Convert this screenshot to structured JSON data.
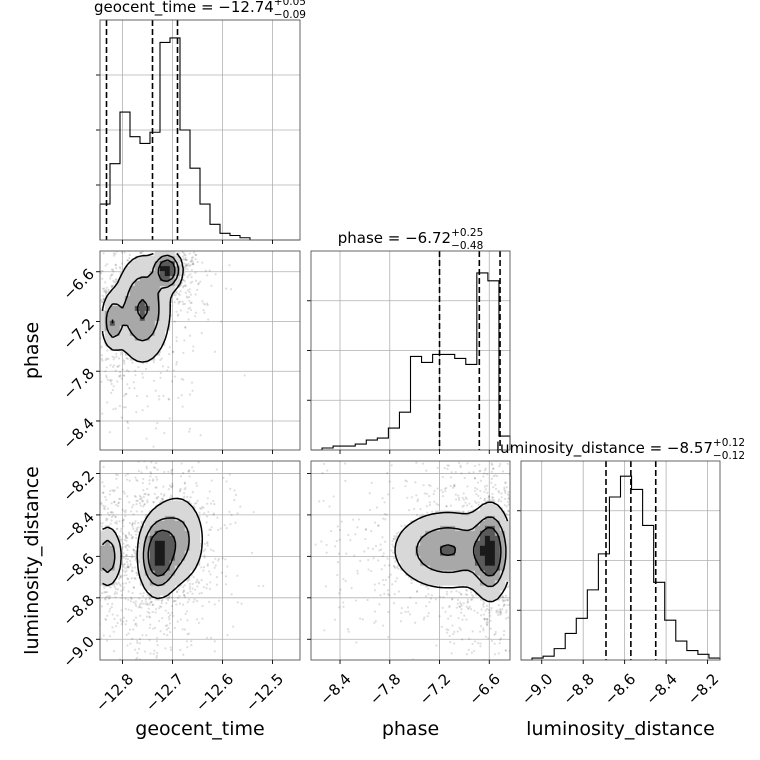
{
  "chart_data": {
    "type": "corner",
    "parameters": [
      "geocent_time",
      "phase",
      "luminosity_distance"
    ],
    "panels": [
      {
        "id": "geocent_time-hist",
        "title": {
          "name": "geocent_time",
          "eq": " = ",
          "median": "−12.74",
          "plus": "+0.05",
          "minus": "−0.09"
        },
        "xlim": [
          -12.845,
          -12.445
        ],
        "hist": [
          0.16,
          0.34,
          0.57,
          0.46,
          0.43,
          0.48,
          0.88,
          0.9,
          0.49,
          0.32,
          0.16,
          0.07,
          0.03,
          0.02,
          0.01,
          0,
          0,
          0,
          0,
          0
        ],
        "quantiles": [
          -12.832,
          -12.74,
          -12.69
        ]
      },
      {
        "id": "phase-hist",
        "title": {
          "name": "phase",
          "eq": " = ",
          "median": "−6.72",
          "plus": "+0.25",
          "minus": "−0.48"
        },
        "xlim": [
          -8.75,
          -6.35
        ],
        "hist": [
          0,
          0.01,
          0.02,
          0.02,
          0.03,
          0.05,
          0.06,
          0.11,
          0.19,
          0.47,
          0.44,
          0.48,
          0.48,
          0.46,
          0.43,
          0.89,
          0.85,
          0.07
        ],
        "quantiles": [
          -7.2,
          -6.72,
          -6.47
        ]
      },
      {
        "id": "luminosity_distance-hist",
        "title": {
          "name": "luminosity_distance",
          "eq": " = ",
          "median": "−8.57",
          "plus": "+0.12",
          "minus": "−0.12"
        },
        "xlim": [
          -9.1,
          -8.14
        ],
        "hist": [
          0,
          0.01,
          0.02,
          0.06,
          0.14,
          0.22,
          0.37,
          0.56,
          0.86,
          0.97,
          0.9,
          0.71,
          0.41,
          0.21,
          0.1,
          0.05,
          0.03,
          0.01
        ],
        "quantiles": [
          -8.69,
          -8.57,
          -8.45
        ]
      }
    ],
    "pairs": [
      {
        "id": "geocent_time-phase",
        "x": "geocent_time",
        "y": "phase",
        "xlim": [
          -12.845,
          -12.445
        ],
        "ylim": [
          -8.75,
          -6.35
        ],
        "modes": [
          [
            -12.71,
            -6.58,
            0.015,
            0.12,
            0.9
          ],
          [
            -12.82,
            -7.2,
            0.012,
            0.18,
            0.5
          ],
          [
            -12.76,
            -7.05,
            0.03,
            0.35,
            0.6
          ]
        ]
      },
      {
        "id": "geocent_time-luminosity_distance",
        "x": "geocent_time",
        "y": "luminosity_distance",
        "xlim": [
          -12.845,
          -12.445
        ],
        "ylim": [
          -9.1,
          -8.14
        ],
        "modes": [
          [
            -12.83,
            -8.6,
            0.015,
            0.08,
            0.6
          ],
          [
            -12.73,
            -8.6,
            0.02,
            0.1,
            0.9
          ],
          [
            -12.69,
            -8.52,
            0.03,
            0.12,
            0.5
          ]
        ]
      },
      {
        "id": "phase-luminosity_distance",
        "x": "phase",
        "y": "luminosity_distance",
        "xlim": [
          -8.75,
          -6.35
        ],
        "ylim": [
          -9.1,
          -8.14
        ],
        "modes": [
          [
            -7.1,
            -8.57,
            0.35,
            0.1,
            0.7
          ],
          [
            -6.58,
            -8.58,
            0.12,
            0.12,
            0.9
          ]
        ]
      }
    ],
    "xticks": {
      "geocent_time": [
        {
          "v": -12.8,
          "label": "−12.8"
        },
        {
          "v": -12.7,
          "label": "−12.7"
        },
        {
          "v": -12.6,
          "label": "−12.6"
        },
        {
          "v": -12.5,
          "label": "−12.5"
        }
      ],
      "phase": [
        {
          "v": -8.4,
          "label": "−8.4"
        },
        {
          "v": -7.8,
          "label": "−7.8"
        },
        {
          "v": -7.2,
          "label": "−7.2"
        },
        {
          "v": -6.6,
          "label": "−6.6"
        }
      ],
      "luminosity_distance": [
        {
          "v": -9.0,
          "label": "−9.0"
        },
        {
          "v": -8.8,
          "label": "−8.8"
        },
        {
          "v": -8.6,
          "label": "−8.6"
        },
        {
          "v": -8.4,
          "label": "−8.4"
        },
        {
          "v": -8.2,
          "label": "−8.2"
        }
      ]
    },
    "yticks": {
      "phase": [
        {
          "v": -6.6,
          "label": "−6.6"
        },
        {
          "v": -7.2,
          "label": "−7.2"
        },
        {
          "v": -7.8,
          "label": "−7.8"
        },
        {
          "v": -8.4,
          "label": "−8.4"
        }
      ],
      "luminosity_distance": [
        {
          "v": -8.2,
          "label": "−8.2"
        },
        {
          "v": -8.4,
          "label": "−8.4"
        },
        {
          "v": -8.6,
          "label": "−8.6"
        },
        {
          "v": -8.8,
          "label": "−8.8"
        },
        {
          "v": -9.0,
          "label": "−9.0"
        }
      ]
    },
    "axis_labels": {
      "x": [
        "geocent_time",
        "phase",
        "luminosity_distance"
      ],
      "y": [
        "phase",
        "luminosity_distance"
      ]
    },
    "grid": true
  }
}
